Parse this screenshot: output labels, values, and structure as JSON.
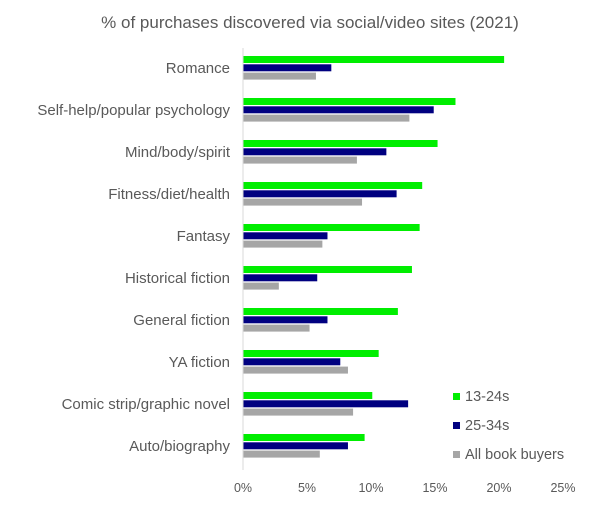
{
  "chart_data": {
    "type": "bar",
    "orientation": "horizontal",
    "title": "% of purchases discovered via social/video sites (2021)",
    "xlabel": "",
    "ylabel": "",
    "categories": [
      "Romance",
      "Self-help/popular psychology",
      "Mind/body/spirit",
      "Fitness/diet/health",
      "Fantasy",
      "Historical fiction",
      "General fiction",
      "YA fiction",
      "Comic strip/graphic novel",
      "Auto/biography"
    ],
    "series": [
      {
        "name": "13-24s",
        "color": "#00ee00",
        "values": [
          20.4,
          16.6,
          15.2,
          14.0,
          13.8,
          13.2,
          12.1,
          10.6,
          10.1,
          9.5
        ]
      },
      {
        "name": "25-34s",
        "color": "#000080",
        "values": [
          6.9,
          14.9,
          11.2,
          12.0,
          6.6,
          5.8,
          6.6,
          7.6,
          12.9,
          8.2
        ]
      },
      {
        "name": "All book buyers",
        "color": "#a6a6a6",
        "values": [
          5.7,
          13.0,
          8.9,
          9.3,
          6.2,
          2.8,
          5.2,
          8.2,
          8.6,
          6.0
        ]
      }
    ],
    "xlim": [
      0,
      25
    ],
    "xticks": [
      0,
      5,
      10,
      15,
      20,
      25
    ],
    "xtick_labels": [
      "0%",
      "5%",
      "10%",
      "15%",
      "20%",
      "25%"
    ],
    "grid": false,
    "legend_position": "bottom-right"
  }
}
